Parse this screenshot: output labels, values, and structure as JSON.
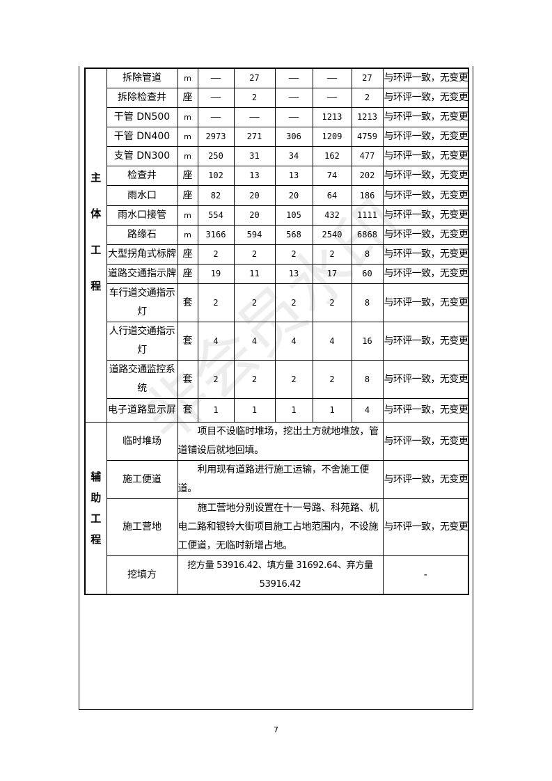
{
  "main_rows": [
    {
      "name": "拆除管道",
      "unit": "m",
      "c1": "——",
      "c2": "27",
      "c3": "——",
      "c4": "——",
      "total": "27",
      "result": "与环评一致，无变更"
    },
    {
      "name": "拆除检查井",
      "unit": "座",
      "c1": "——",
      "c2": "2",
      "c3": "——",
      "c4": "——",
      "total": "2",
      "result": "与环评一致，无变更"
    },
    {
      "name": "干管 DN500",
      "unit": "m",
      "c1": "——",
      "c2": "——",
      "c3": "——",
      "c4": "1213",
      "total": "1213",
      "result": "与环评一致，无变更"
    },
    {
      "name": "干管 DN400",
      "unit": "m",
      "c1": "2973",
      "c2": "271",
      "c3": "306",
      "c4": "1209",
      "total": "4759",
      "result": "与环评一致，无变更"
    },
    {
      "name": "支管 DN300",
      "unit": "m",
      "c1": "250",
      "c2": "31",
      "c3": "34",
      "c4": "162",
      "total": "477",
      "result": "与环评一致，无变更"
    },
    {
      "name": "检查井",
      "unit": "座",
      "c1": "102",
      "c2": "13",
      "c3": "13",
      "c4": "74",
      "total": "202",
      "result": "与环评一致，无变更"
    },
    {
      "name": "雨水口",
      "unit": "座",
      "c1": "82",
      "c2": "20",
      "c3": "20",
      "c4": "64",
      "total": "186",
      "result": "与环评一致，无变更"
    },
    {
      "name": "雨水口接管",
      "unit": "m",
      "c1": "554",
      "c2": "20",
      "c3": "105",
      "c4": "432",
      "total": "1111",
      "result": "与环评一致，无变更"
    },
    {
      "name": "路缘石",
      "unit": "m",
      "c1": "3166",
      "c2": "594",
      "c3": "568",
      "c4": "2540",
      "total": "6868",
      "result": "与环评一致，无变更"
    },
    {
      "name": "大型拐角式标牌",
      "unit": "座",
      "c1": "2",
      "c2": "2",
      "c3": "2",
      "c4": "2",
      "total": "8",
      "result": "与环评一致，无变更"
    },
    {
      "name": "道路交通指示牌",
      "unit": "座",
      "c1": "19",
      "c2": "11",
      "c3": "13",
      "c4": "17",
      "total": "60",
      "result": "与环评一致，无变更"
    },
    {
      "name": "车行道交通指示灯",
      "unit": "套",
      "c1": "2",
      "c2": "2",
      "c3": "2",
      "c4": "2",
      "total": "8",
      "result": "与环评一致，无变更"
    },
    {
      "name": "人行道交通指示灯",
      "unit": "套",
      "c1": "4",
      "c2": "4",
      "c3": "4",
      "c4": "4",
      "total": "16",
      "result": "与环评一致，无变更"
    },
    {
      "name": "道路交通监控系统",
      "unit": "套",
      "c1": "2",
      "c2": "2",
      "c3": "2",
      "c4": "2",
      "total": "8",
      "result": "与环评一致，无变更"
    },
    {
      "name": "电子道路显示屏",
      "unit": "套",
      "c1": "1",
      "c2": "1",
      "c3": "1",
      "c4": "1",
      "total": "4",
      "result": "与环评一致，无变更"
    }
  ],
  "main_category": "主体工程",
  "aux_category": "辅助工程",
  "aux_rows": [
    {
      "name": "临时堆场",
      "desc": "项目不设临时堆场，挖出土方就地堆放，管道铺设后就地回填。",
      "result": "与环评一致，无变更"
    },
    {
      "name": "施工便道",
      "desc": "利用现有道路进行施工运输，不舍施工便道。",
      "result": "与环评一致，无变更"
    },
    {
      "name": "施工营地",
      "desc": "施工营地分别设置在十一号路、科苑路、机电二路和银铃大街项目施工占地范围内，不设施工便道，无临时新增占地。",
      "result": "与环评一致，无变更"
    },
    {
      "name": "挖填方",
      "desc": "挖方量 53916.42、填方量 31692.64、弃方量 53916.42",
      "result": "-"
    }
  ],
  "watermark": "非会员水印",
  "page_number": "7"
}
